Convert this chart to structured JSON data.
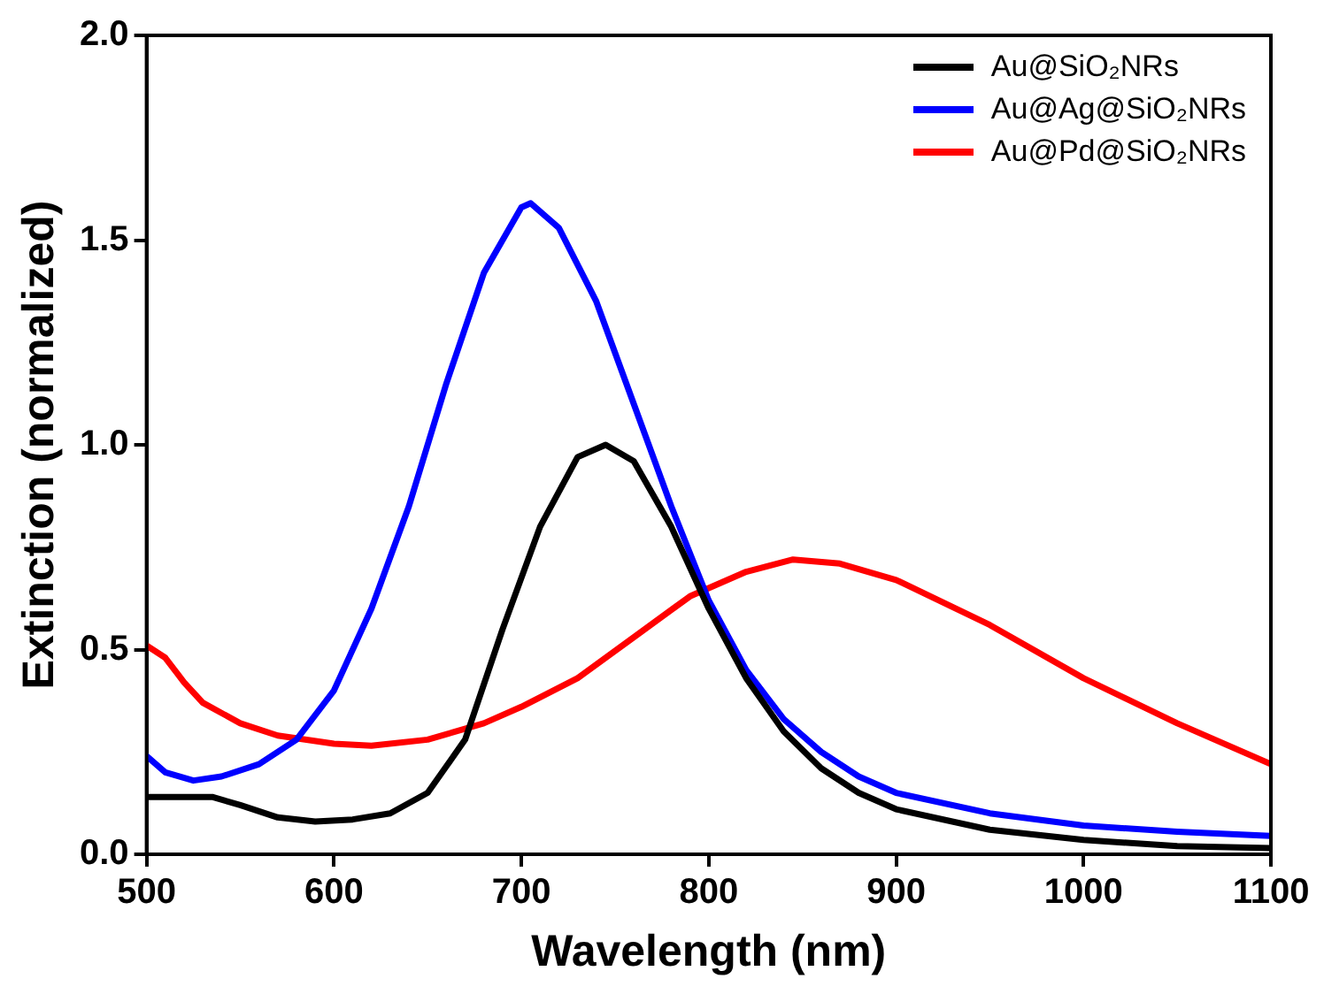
{
  "chart_data": {
    "type": "line",
    "xlabel": "Wavelength (nm)",
    "ylabel": "Extinction (normalized)",
    "xlim": [
      500,
      1100
    ],
    "xticks": [
      500,
      600,
      700,
      800,
      900,
      1000,
      1100
    ],
    "ylim": [
      0,
      2.0
    ],
    "yticks": [
      {
        "value": 0,
        "label": "0.0"
      },
      {
        "value": 0.5,
        "label": "0.5"
      },
      {
        "value": 1.0,
        "label": "1.0"
      },
      {
        "value": 1.5,
        "label": "1.5"
      },
      {
        "value": 2.0,
        "label": "2.0"
      }
    ],
    "grid": false,
    "legend": "top right",
    "marker": "none",
    "line_style": "solid",
    "series": [
      {
        "name": "Au@SiO₂NRs",
        "color": "#000000",
        "x": [
          500,
          520,
          535,
          550,
          570,
          590,
          610,
          630,
          650,
          670,
          690,
          710,
          730,
          745,
          760,
          780,
          800,
          820,
          840,
          860,
          880,
          900,
          950,
          1000,
          1050,
          1100
        ],
        "values": [
          0.14,
          0.14,
          0.14,
          0.12,
          0.09,
          0.08,
          0.085,
          0.1,
          0.15,
          0.28,
          0.55,
          0.8,
          0.97,
          1.0,
          0.96,
          0.8,
          0.6,
          0.43,
          0.3,
          0.21,
          0.15,
          0.11,
          0.06,
          0.035,
          0.02,
          0.015
        ]
      },
      {
        "name": "Au@Ag@SiO₂NRs",
        "color": "#0000ff",
        "x": [
          500,
          510,
          525,
          540,
          560,
          580,
          600,
          620,
          640,
          660,
          680,
          700,
          705,
          720,
          740,
          760,
          780,
          800,
          820,
          840,
          860,
          880,
          900,
          950,
          1000,
          1050,
          1100
        ],
        "values": [
          0.24,
          0.2,
          0.18,
          0.19,
          0.22,
          0.28,
          0.4,
          0.6,
          0.85,
          1.15,
          1.42,
          1.58,
          1.59,
          1.53,
          1.35,
          1.1,
          0.85,
          0.62,
          0.45,
          0.33,
          0.25,
          0.19,
          0.15,
          0.1,
          0.07,
          0.055,
          0.045
        ]
      },
      {
        "name": "Au@Pd@SiO₂NRs",
        "color": "#ff0000",
        "x": [
          500,
          510,
          520,
          530,
          550,
          570,
          600,
          620,
          650,
          680,
          700,
          730,
          760,
          790,
          820,
          845,
          870,
          900,
          950,
          1000,
          1050,
          1100
        ],
        "values": [
          0.51,
          0.48,
          0.42,
          0.37,
          0.32,
          0.29,
          0.27,
          0.265,
          0.28,
          0.32,
          0.36,
          0.43,
          0.53,
          0.63,
          0.69,
          0.72,
          0.71,
          0.67,
          0.56,
          0.43,
          0.32,
          0.22
        ]
      }
    ]
  }
}
